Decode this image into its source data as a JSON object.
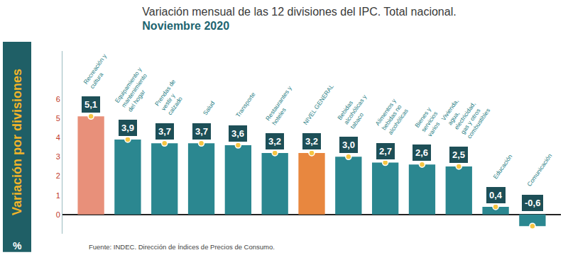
{
  "chart_data": {
    "type": "bar",
    "title": "Variación mensual de las 12 divisiones del IPC. Total nacional.",
    "subtitle": "Noviembre 2020",
    "y_label": "Variación por divisiones",
    "y_unit": "%",
    "source": "Fuente: INDEC. Dirección de Índices de Precios de Consumo.",
    "categories": [
      "Recreación y cultura",
      "Equipamiento y mantenimiento del hogar",
      "Prendas de vestir y calzado",
      "Salud",
      "Transporte",
      "Restaurantes y hoteles",
      "NIVEL GENERAL",
      "Bebidas alcohólicas y tabaco",
      "Alimentos y bebidas no alcohólicas",
      "Bienes y servicios varios",
      "Vivienda, agua, electricidad, gas y otros combustibles",
      "Educación",
      "Comunicación"
    ],
    "values": [
      5.1,
      3.9,
      3.7,
      3.7,
      3.6,
      3.2,
      3.2,
      3.0,
      2.7,
      2.6,
      2.5,
      0.4,
      -0.6
    ],
    "value_labels": [
      "5,1",
      "3,9",
      "3,7",
      "3,7",
      "3,6",
      "3,2",
      "3,2",
      "3,0",
      "2,7",
      "2,6",
      "2,5",
      "0,4",
      "-0,6"
    ],
    "colors": [
      "#e8907a",
      "#2b8790",
      "#2b8790",
      "#2b8790",
      "#2b8790",
      "#2b8790",
      "#e8873f",
      "#2b8790",
      "#2b8790",
      "#2b8790",
      "#2b8790",
      "#2b8790",
      "#2b8790"
    ],
    "ylim": [
      -1,
      8.5
    ],
    "yticks": [
      0,
      1,
      2,
      3,
      4,
      5,
      6
    ],
    "grid": false,
    "data_labels": true,
    "tick_labels": "y"
  }
}
